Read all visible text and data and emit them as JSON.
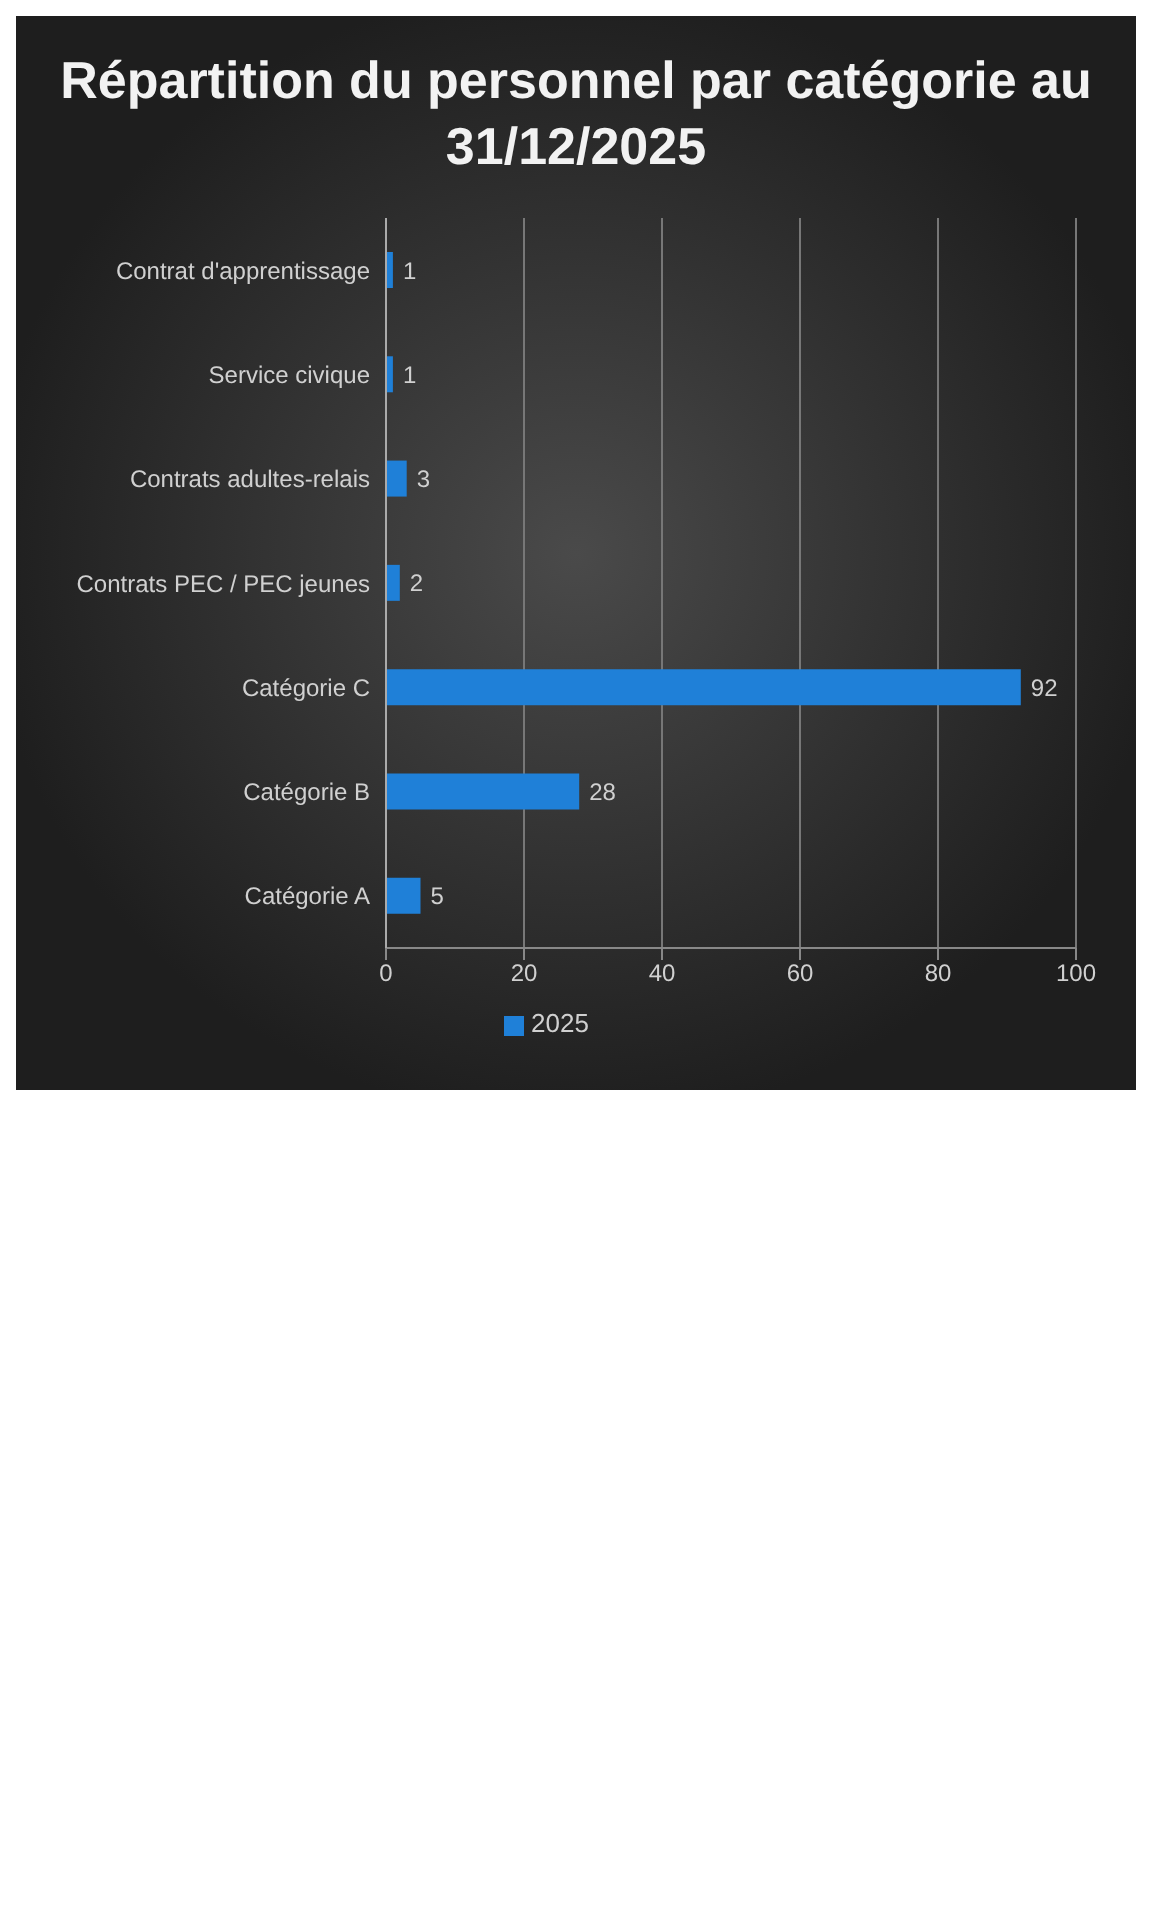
{
  "chart_data": {
    "type": "bar",
    "orientation": "horizontal",
    "title": "Répartition du personnel par catégorie au 31/12/2025",
    "categories": [
      "Contrat d'apprentissage",
      "Service civique",
      "Contrats adultes-relais",
      "Contrats PEC / PEC jeunes",
      "Catégorie C",
      "Catégorie B",
      "Catégorie A"
    ],
    "series": [
      {
        "name": "2025",
        "color": "#1f80d8",
        "values": [
          1,
          1,
          3,
          2,
          92,
          28,
          5
        ]
      }
    ],
    "xlim": [
      0,
      100
    ],
    "xticks": [
      0,
      20,
      40,
      60,
      80,
      100
    ],
    "grid": "x",
    "legend": "bottom",
    "data_labels": true
  }
}
